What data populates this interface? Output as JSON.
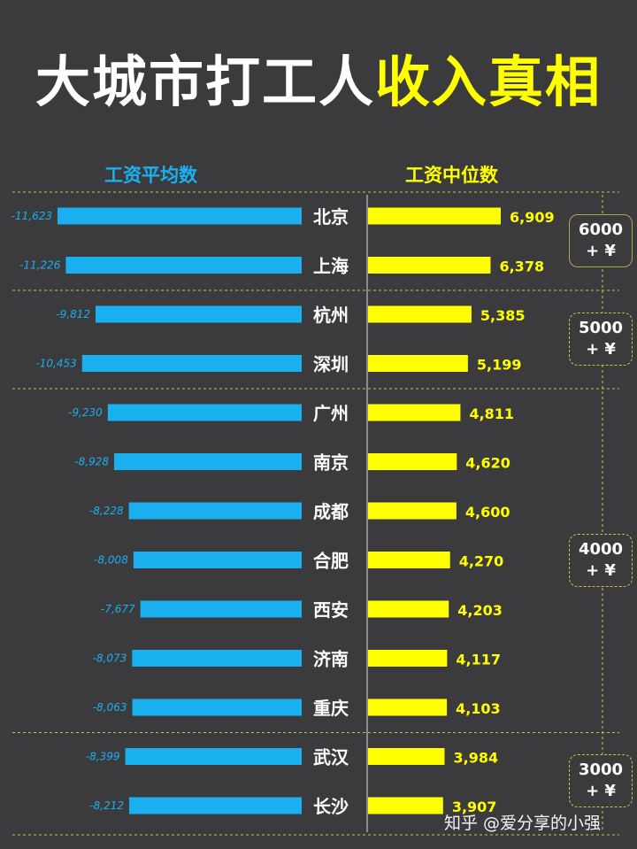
{
  "title": {
    "part1": "大城市打工人",
    "part2": "收入真相"
  },
  "colors": {
    "average": "#1ab0f0",
    "median": "#ffff00",
    "background": "#3b3b3d",
    "divider": "#c8c84a"
  },
  "chart_data": {
    "type": "bar",
    "title": "大城市打工人收入真相",
    "categories": [
      "北京",
      "上海",
      "杭州",
      "深圳",
      "广州",
      "南京",
      "成都",
      "合肥",
      "西安",
      "济南",
      "重庆",
      "武汉",
      "长沙"
    ],
    "series": [
      {
        "name": "工资平均数",
        "values": [
          11623,
          11226,
          9812,
          10453,
          9230,
          8928,
          8228,
          8008,
          7677,
          8073,
          8063,
          8399,
          8212
        ],
        "labels": [
          "-11,623",
          "-11,226",
          "-9,812",
          "-10,453",
          "-9,230",
          "-8,928",
          "-8,228",
          "-8,008",
          "-7,677",
          "-8,073",
          "-8,063",
          "-8,399",
          "-8,212"
        ]
      },
      {
        "name": "工资中位数",
        "values": [
          6909,
          6378,
          5385,
          5199,
          4811,
          4620,
          4600,
          4270,
          4203,
          4117,
          4103,
          3984,
          3907
        ],
        "labels": [
          "6,909",
          "6,378",
          "5,385",
          "5,199",
          "4,811",
          "4,620",
          "4,600",
          "4,270",
          "4,203",
          "4,117",
          "4,103",
          "3,984",
          "3,907"
        ]
      }
    ],
    "groups": [
      {
        "line1": "6000",
        "line2": "+ ¥",
        "rows": [
          0,
          1
        ]
      },
      {
        "line1": "5000",
        "line2": "+ ¥",
        "rows": [
          2,
          3
        ]
      },
      {
        "line1": "4000",
        "line2": "+ ¥",
        "rows": [
          4,
          5,
          6,
          7,
          8,
          9,
          10
        ]
      },
      {
        "line1": "3000",
        "line2": "+ ¥",
        "rows": [
          11,
          12
        ]
      }
    ]
  },
  "watermark": "知乎 @爱分享的小强"
}
